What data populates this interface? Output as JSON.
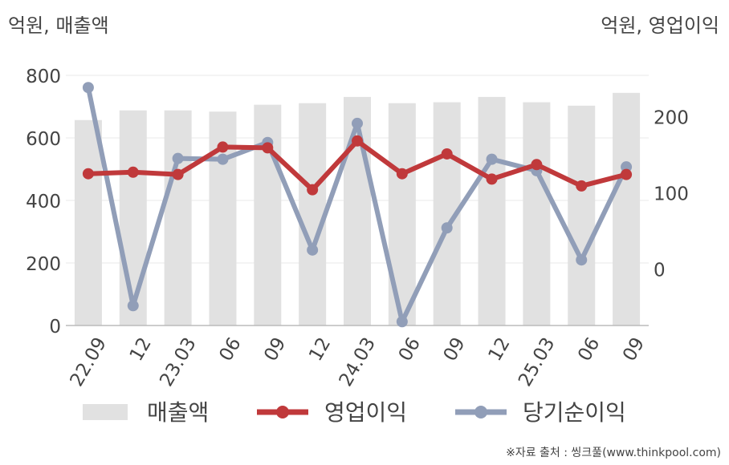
{
  "chart_data": {
    "type": "bar",
    "left_axis_label": "억원, 매출액",
    "right_axis_label": "억원, 영업이익",
    "categories": [
      "22.09",
      "12",
      "23.03",
      "06",
      "09",
      "12",
      "24.03",
      "06",
      "09",
      "12",
      "25.03",
      "06",
      "09"
    ],
    "left_ylim": [
      0,
      800
    ],
    "left_ticks": [
      0,
      200,
      400,
      600,
      800
    ],
    "right_ylim": [
      -74,
      254
    ],
    "right_ticks": [
      0,
      100,
      200
    ],
    "grid": true,
    "legend_position": "bottom",
    "series": [
      {
        "name": "매출액",
        "type": "bar",
        "axis": "left",
        "color": "#e1e1e1",
        "values": [
          657,
          688,
          688,
          684,
          706,
          711,
          731,
          711,
          714,
          731,
          714,
          703,
          744
        ]
      },
      {
        "name": "영업이익",
        "type": "line",
        "axis": "right",
        "color": "#c0393b",
        "values": [
          125,
          127,
          124,
          160,
          159,
          104,
          168,
          125,
          151,
          118,
          137,
          109,
          124
        ]
      },
      {
        "name": "당기순이익",
        "type": "line",
        "axis": "right",
        "color": "#919eb8",
        "values": [
          238,
          -48,
          145,
          144,
          166,
          25,
          191,
          -69,
          54,
          144,
          129,
          12,
          134
        ]
      }
    ]
  },
  "source": "※자료 출처 : 씽크풀(www.thinkpool.com)"
}
